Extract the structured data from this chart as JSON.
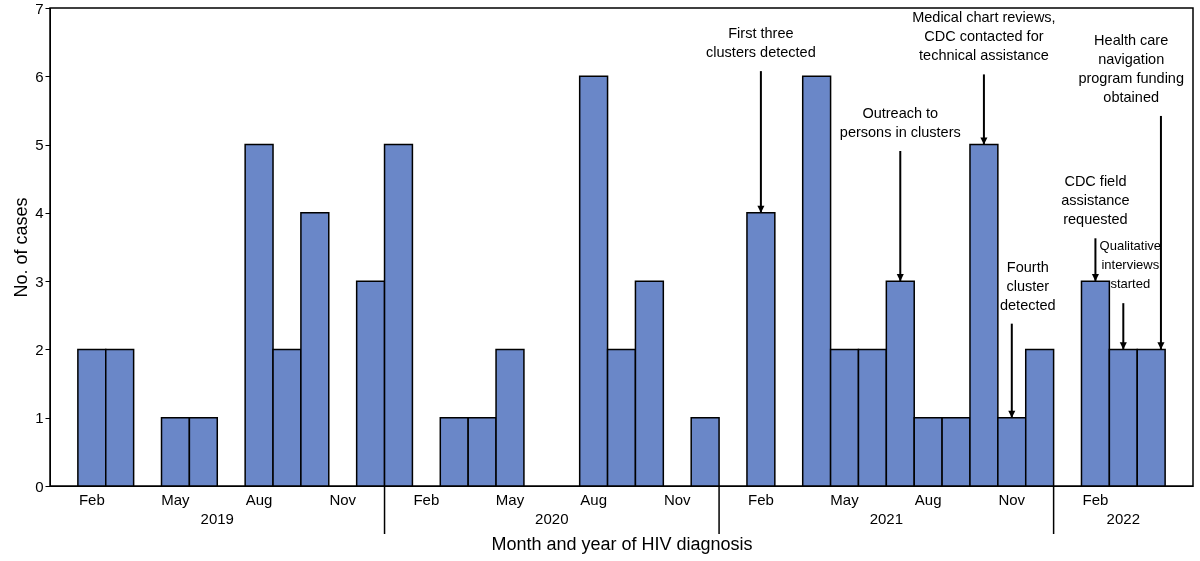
{
  "chart_data": {
    "type": "bar",
    "xlabel": "Month and year of HIV diagnosis",
    "ylabel": "No. of cases",
    "x": [
      "2019-01",
      "2019-02",
      "2019-03",
      "2019-04",
      "2019-05",
      "2019-06",
      "2019-07",
      "2019-08",
      "2019-09",
      "2019-10",
      "2019-11",
      "2019-12",
      "2020-01",
      "2020-02",
      "2020-03",
      "2020-04",
      "2020-05",
      "2020-06",
      "2020-07",
      "2020-08",
      "2020-09",
      "2020-10",
      "2020-11",
      "2020-12",
      "2021-01",
      "2021-02",
      "2021-03",
      "2021-04",
      "2021-05",
      "2021-06",
      "2021-07",
      "2021-08",
      "2021-09",
      "2021-10",
      "2021-11",
      "2021-12",
      "2022-01",
      "2022-02",
      "2022-03",
      "2022-04"
    ],
    "values": [
      0,
      2,
      2,
      0,
      1,
      1,
      0,
      5,
      2,
      4,
      0,
      3,
      5,
      0,
      1,
      1,
      2,
      0,
      0,
      6,
      2,
      3,
      0,
      1,
      0,
      4,
      0,
      6,
      2,
      2,
      3,
      1,
      1,
      5,
      1,
      2,
      0,
      3,
      2,
      2
    ],
    "color": "#6a87c8",
    "ylim": [
      0,
      7
    ],
    "yticks": [
      0,
      1,
      2,
      3,
      4,
      5,
      6,
      7
    ],
    "xticks": [
      {
        "value": "2019-02",
        "label": "Feb"
      },
      {
        "value": "2019-05",
        "label": "May"
      },
      {
        "value": "2019-08",
        "label": "Aug"
      },
      {
        "value": "2019-11",
        "label": "Nov"
      },
      {
        "value": "2020-02",
        "label": "Feb"
      },
      {
        "value": "2020-05",
        "label": "May"
      },
      {
        "value": "2020-08",
        "label": "Aug"
      },
      {
        "value": "2020-11",
        "label": "Nov"
      },
      {
        "value": "2021-02",
        "label": "Feb"
      },
      {
        "value": "2021-05",
        "label": "May"
      },
      {
        "value": "2021-08",
        "label": "Aug"
      },
      {
        "value": "2021-11",
        "label": "Nov"
      },
      {
        "value": "2022-02",
        "label": "Feb"
      }
    ],
    "grid": false,
    "xlim": [
      "2018-12-16",
      "2022-05-16"
    ],
    "annotations": [
      "2019",
      "2020",
      "2021",
      "2022",
      {
        "text": "First three\nclusters detected",
        "x": "2021-02",
        "y": 4
      },
      {
        "text": "Outreach to\npersons in clusters",
        "x": "2021-07",
        "y": 3
      },
      {
        "text": "Medical chart reviews,\nCDC contacted for\ntechnical assistance",
        "x": "2021-10",
        "y": 5
      },
      {
        "text": "Fourth\ncluster\ndetected",
        "x": "2021-11",
        "y": 1
      },
      {
        "text": "CDC field\nassistance\nrequested",
        "x": "2022-02",
        "y": 3
      },
      {
        "text": "Qualitative\ninterviews\nstarted",
        "x": "2022-03",
        "y": 2
      },
      {
        "text": "Health care\nnavigation\nprogram funding\nobtained",
        "x": "2022-04",
        "y": 2
      }
    ]
  }
}
